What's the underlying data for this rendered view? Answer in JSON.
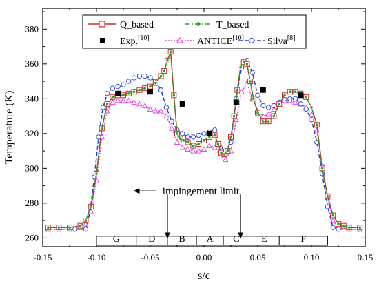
{
  "chart_data": {
    "type": "line",
    "xlabel": "s/c",
    "ylabel": "Temperature (K)",
    "xlim": [
      -0.15,
      0.15
    ],
    "ylim": [
      255,
      392
    ],
    "xticks": [
      -0.15,
      -0.1,
      -0.05,
      0.0,
      0.05,
      0.1,
      0.15
    ],
    "xtick_labels": [
      "-0.15",
      "-0.10",
      "-0.05",
      "0.00",
      "0.05",
      "0.10",
      "0.15"
    ],
    "yticks": [
      260,
      280,
      300,
      320,
      340,
      360,
      380
    ],
    "ytick_labels": [
      "260",
      "280",
      "300",
      "320",
      "340",
      "360",
      "380"
    ],
    "grid": false,
    "legend_position": "top-center",
    "legend": {
      "q_based": "Q_based",
      "t_based": "T_based",
      "exp": "Exp.",
      "exp_ref": "[10]",
      "antice": "ANTICE",
      "antice_ref": "[10]",
      "silva": "Silva",
      "silva_ref": "[8]"
    },
    "series": [
      {
        "name": "Q_based",
        "color": "#d62728",
        "style": "solid",
        "marker": "open-square",
        "x": [
          -0.145,
          -0.135,
          -0.125,
          -0.115,
          -0.11,
          -0.105,
          -0.1,
          -0.095,
          -0.09,
          -0.085,
          -0.08,
          -0.075,
          -0.07,
          -0.065,
          -0.06,
          -0.055,
          -0.05,
          -0.045,
          -0.04,
          -0.037,
          -0.034,
          -0.031,
          -0.028,
          -0.025,
          -0.022,
          -0.019,
          -0.015,
          -0.01,
          -0.005,
          0.0,
          0.005,
          0.01,
          0.013,
          0.016,
          0.019,
          0.022,
          0.025,
          0.028,
          0.031,
          0.034,
          0.037,
          0.04,
          0.043,
          0.046,
          0.05,
          0.055,
          0.06,
          0.065,
          0.07,
          0.075,
          0.08,
          0.085,
          0.09,
          0.095,
          0.1,
          0.105,
          0.11,
          0.115,
          0.12,
          0.125,
          0.13,
          0.135,
          0.145
        ],
        "y": [
          266,
          266,
          266,
          267,
          270,
          278,
          297,
          323,
          337,
          341,
          342,
          342,
          343,
          344,
          345,
          346,
          347,
          349,
          353,
          356,
          362,
          367,
          342,
          320,
          317,
          316,
          315,
          313,
          314,
          316,
          318,
          319,
          314,
          309,
          308,
          310,
          318,
          330,
          345,
          358,
          361,
          360,
          350,
          340,
          332,
          327,
          327,
          330,
          337,
          342,
          344,
          344,
          343,
          341,
          335,
          325,
          300,
          284,
          273,
          268,
          267,
          266,
          266
        ]
      },
      {
        "name": "T_based",
        "color": "#2ca02c",
        "style": "dashdot",
        "marker": "dot",
        "x": [
          -0.145,
          -0.135,
          -0.125,
          -0.115,
          -0.11,
          -0.105,
          -0.1,
          -0.095,
          -0.09,
          -0.085,
          -0.08,
          -0.075,
          -0.07,
          -0.065,
          -0.06,
          -0.055,
          -0.05,
          -0.045,
          -0.04,
          -0.037,
          -0.034,
          -0.031,
          -0.028,
          -0.025,
          -0.022,
          -0.019,
          -0.015,
          -0.01,
          -0.005,
          0.0,
          0.005,
          0.01,
          0.013,
          0.016,
          0.019,
          0.022,
          0.025,
          0.028,
          0.031,
          0.034,
          0.037,
          0.04,
          0.043,
          0.046,
          0.05,
          0.055,
          0.06,
          0.065,
          0.07,
          0.075,
          0.08,
          0.085,
          0.09,
          0.095,
          0.1,
          0.105,
          0.11,
          0.115,
          0.12,
          0.125,
          0.13,
          0.135,
          0.145
        ],
        "y": [
          266,
          266,
          266,
          267,
          270,
          278,
          297,
          323,
          337,
          341,
          342,
          342,
          343,
          344,
          345,
          346,
          347,
          349,
          353,
          356,
          362,
          367,
          342,
          320,
          317,
          316,
          315,
          313,
          314,
          316,
          318,
          319,
          314,
          309,
          308,
          310,
          318,
          330,
          345,
          358,
          361,
          360,
          350,
          340,
          332,
          327,
          327,
          330,
          337,
          342,
          344,
          344,
          343,
          341,
          335,
          325,
          300,
          284,
          273,
          268,
          267,
          266,
          266
        ]
      },
      {
        "name": "ANTICE",
        "color": "#e040e0",
        "style": "dotted",
        "marker": "open-triangle",
        "x": [
          -0.145,
          -0.135,
          -0.125,
          -0.115,
          -0.11,
          -0.105,
          -0.1,
          -0.095,
          -0.09,
          -0.085,
          -0.08,
          -0.075,
          -0.07,
          -0.065,
          -0.06,
          -0.055,
          -0.05,
          -0.045,
          -0.04,
          -0.035,
          -0.03,
          -0.025,
          -0.02,
          -0.015,
          -0.01,
          -0.005,
          0.0,
          0.005,
          0.01,
          0.015,
          0.02,
          0.025,
          0.03,
          0.035,
          0.04,
          0.045,
          0.05,
          0.055,
          0.06,
          0.065,
          0.07,
          0.075,
          0.08,
          0.085,
          0.09,
          0.095,
          0.1,
          0.105,
          0.11,
          0.115,
          0.12,
          0.125,
          0.135,
          0.145
        ],
        "y": [
          265,
          265,
          265,
          266,
          268,
          275,
          293,
          318,
          333,
          338,
          339,
          339,
          339,
          338,
          337,
          336,
          334,
          333,
          333,
          330,
          323,
          315,
          312,
          311,
          310,
          310,
          311,
          313,
          312,
          307,
          305,
          310,
          328,
          344,
          349,
          340,
          333,
          330,
          331,
          334,
          337,
          339,
          339,
          338,
          337,
          335,
          331,
          322,
          302,
          283,
          270,
          266,
          265,
          265
        ]
      },
      {
        "name": "Silva",
        "color": "#1f3fd6",
        "style": "dashed",
        "marker": "open-circle",
        "x": [
          -0.145,
          -0.12,
          -0.11,
          -0.106,
          -0.102,
          -0.098,
          -0.094,
          -0.09,
          -0.085,
          -0.08,
          -0.075,
          -0.07,
          -0.065,
          -0.06,
          -0.055,
          -0.05,
          -0.045,
          -0.04,
          -0.035,
          -0.03,
          -0.025,
          -0.02,
          -0.015,
          -0.01,
          -0.005,
          0.0,
          0.005,
          0.01,
          0.015,
          0.02,
          0.025,
          0.03,
          0.035,
          0.04,
          0.045,
          0.05,
          0.055,
          0.06,
          0.065,
          0.07,
          0.075,
          0.08,
          0.085,
          0.09,
          0.095,
          0.1,
          0.105,
          0.11,
          0.115,
          0.12,
          0.125,
          0.145
        ],
        "y": [
          265,
          265,
          265,
          275,
          295,
          318,
          335,
          343,
          346,
          347,
          348,
          350,
          352,
          353,
          353,
          352,
          350,
          345,
          335,
          327,
          322,
          320,
          318,
          318,
          319,
          320,
          321,
          322,
          312,
          310,
          315,
          340,
          358,
          362,
          355,
          342,
          336,
          335,
          336,
          338,
          340,
          340,
          340,
          337,
          334,
          328,
          315,
          297,
          278,
          266,
          265,
          265
        ]
      }
    ],
    "experimental_points": {
      "name": "Exp.",
      "x": [
        -0.08,
        -0.05,
        -0.02,
        0.005,
        0.03,
        0.055,
        0.09
      ],
      "y": [
        343,
        344,
        337,
        320,
        338,
        345,
        342
      ]
    },
    "zones": {
      "labels": [
        "G",
        "D",
        "B",
        "A",
        "C",
        "E",
        "F"
      ],
      "boundaries": [
        -0.1,
        -0.063,
        -0.034,
        -0.007,
        0.018,
        0.042,
        0.07,
        0.115
      ]
    },
    "annotation": {
      "text": "impingement limit",
      "arrow_from_x": -0.045,
      "arrow_to_x": -0.065,
      "y": 287
    },
    "limit_arrows": {
      "x": [
        -0.034,
        0.034
      ],
      "y_top": 285,
      "y_bottom": 260
    }
  }
}
